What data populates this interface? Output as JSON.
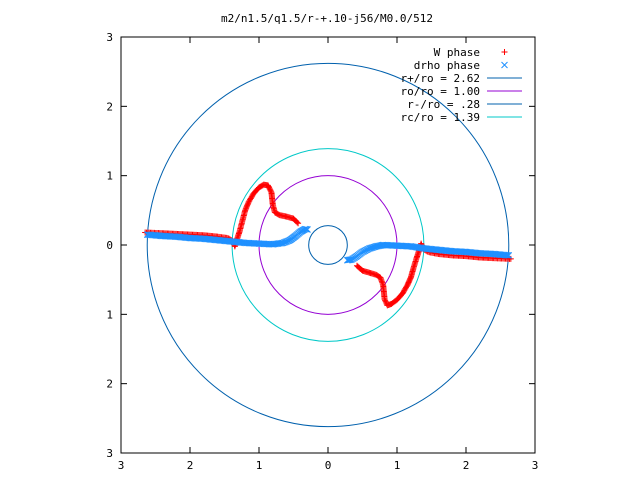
{
  "chart_data": {
    "type": "scatter",
    "title": "m2/n1.5/q1.5/r-+.10-j56/M0.0/512",
    "xlabel": "",
    "ylabel": "",
    "xlim": [
      -3,
      3
    ],
    "ylim": [
      -3,
      3
    ],
    "x_ticks": [
      -3,
      -2,
      -1,
      0,
      1,
      2,
      3
    ],
    "y_ticks": [
      -3,
      -2,
      -1,
      0,
      1,
      2,
      3
    ],
    "x_tick_labels": [
      "3",
      "2",
      "1",
      "0",
      "1",
      "2",
      "3"
    ],
    "y_tick_labels": [
      "3",
      "2",
      "1",
      "0",
      "1",
      "2",
      "3"
    ],
    "grid": false,
    "legend_position": "top-right",
    "circles": [
      {
        "label": "r+/ro = 2.62",
        "radius": 2.62,
        "color": "#0060ad"
      },
      {
        "label": "ro/ro = 1.00",
        "radius": 1.0,
        "color": "#9400d3"
      },
      {
        "label": "r-/ro = .28",
        "radius": 0.28,
        "color": "#0060ad"
      },
      {
        "label": "rc/ro = 1.39",
        "radius": 1.39,
        "color": "#00c8c8"
      }
    ],
    "series": [
      {
        "name": "W phase",
        "marker": "+",
        "color": "#ff0000",
        "points": [
          [
            -2.65,
            0.18
          ],
          [
            -2.4,
            0.17
          ],
          [
            -2.2,
            0.16
          ],
          [
            -2.0,
            0.15
          ],
          [
            -1.8,
            0.14
          ],
          [
            -1.6,
            0.12
          ],
          [
            -1.45,
            0.1
          ],
          [
            -1.37,
            0.05
          ],
          [
            -1.35,
            -0.02
          ],
          [
            -1.32,
            0.08
          ],
          [
            -1.28,
            0.2
          ],
          [
            -1.24,
            0.35
          ],
          [
            -1.2,
            0.5
          ],
          [
            -1.15,
            0.62
          ],
          [
            -1.08,
            0.74
          ],
          [
            -1.0,
            0.83
          ],
          [
            -0.93,
            0.87
          ],
          [
            -0.87,
            0.86
          ],
          [
            -0.82,
            0.76
          ],
          [
            -0.8,
            0.58
          ],
          [
            -0.77,
            0.47
          ],
          [
            -0.7,
            0.43
          ],
          [
            -0.6,
            0.41
          ],
          [
            -0.5,
            0.38
          ],
          [
            -0.42,
            0.3
          ],
          [
            2.65,
            -0.2
          ],
          [
            2.4,
            -0.19
          ],
          [
            2.2,
            -0.18
          ],
          [
            2.0,
            -0.16
          ],
          [
            1.8,
            -0.15
          ],
          [
            1.6,
            -0.13
          ],
          [
            1.45,
            -0.1
          ],
          [
            1.37,
            -0.05
          ],
          [
            1.35,
            0.02
          ],
          [
            1.32,
            -0.08
          ],
          [
            1.28,
            -0.2
          ],
          [
            1.24,
            -0.33
          ],
          [
            1.2,
            -0.47
          ],
          [
            1.15,
            -0.58
          ],
          [
            1.08,
            -0.7
          ],
          [
            1.0,
            -0.79
          ],
          [
            0.92,
            -0.85
          ],
          [
            0.86,
            -0.87
          ],
          [
            0.82,
            -0.78
          ],
          [
            0.8,
            -0.58
          ],
          [
            0.76,
            -0.47
          ],
          [
            0.7,
            -0.43
          ],
          [
            0.6,
            -0.4
          ],
          [
            0.5,
            -0.37
          ],
          [
            0.42,
            -0.3
          ]
        ]
      },
      {
        "name": "drho phase",
        "marker": "x",
        "color": "#1e90ff",
        "points": [
          [
            -2.62,
            0.15
          ],
          [
            -2.4,
            0.13
          ],
          [
            -2.2,
            0.12
          ],
          [
            -2.0,
            0.1
          ],
          [
            -1.8,
            0.09
          ],
          [
            -1.6,
            0.07
          ],
          [
            -1.4,
            0.05
          ],
          [
            -1.2,
            0.03
          ],
          [
            -1.0,
            0.02
          ],
          [
            -0.8,
            0.01
          ],
          [
            -0.65,
            0.03
          ],
          [
            -0.55,
            0.07
          ],
          [
            -0.47,
            0.13
          ],
          [
            -0.4,
            0.19
          ],
          [
            -0.33,
            0.23
          ],
          [
            -0.28,
            0.22
          ],
          [
            2.62,
            -0.15
          ],
          [
            2.4,
            -0.13
          ],
          [
            2.2,
            -0.12
          ],
          [
            2.0,
            -0.1
          ],
          [
            1.8,
            -0.09
          ],
          [
            1.6,
            -0.07
          ],
          [
            1.4,
            -0.05
          ],
          [
            1.2,
            -0.02
          ],
          [
            1.0,
            -0.01
          ],
          [
            0.8,
            0.0
          ],
          [
            0.7,
            -0.02
          ],
          [
            0.6,
            -0.05
          ],
          [
            0.5,
            -0.1
          ],
          [
            0.42,
            -0.16
          ],
          [
            0.34,
            -0.21
          ],
          [
            0.28,
            -0.22
          ]
        ]
      }
    ]
  }
}
